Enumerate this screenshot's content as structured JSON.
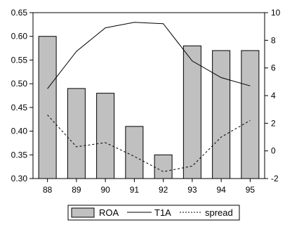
{
  "chart_data": {
    "type": "bar",
    "categories": [
      "88",
      "89",
      "90",
      "91",
      "92",
      "93",
      "94",
      "95"
    ],
    "y_left": {
      "min": 0.3,
      "max": 0.65,
      "ticks": [
        0.3,
        0.35,
        0.4,
        0.45,
        0.5,
        0.55,
        0.6,
        0.65
      ],
      "tick_labels": [
        "0.30",
        "0.35",
        "0.40",
        "0.45",
        "0.50",
        "0.55",
        "0.60",
        "0.65"
      ]
    },
    "y_right": {
      "min": -2,
      "max": 10,
      "ticks": [
        -2,
        0,
        2,
        4,
        6,
        8,
        10
      ],
      "tick_labels": [
        "-2",
        "0",
        "2",
        "4",
        "6",
        "8",
        "10"
      ]
    },
    "series": [
      {
        "name": "ROA",
        "kind": "bar",
        "axis": "left",
        "color": "#c0c0c0",
        "values": [
          0.6,
          0.49,
          0.48,
          0.41,
          0.35,
          0.58,
          0.57,
          0.57
        ]
      },
      {
        "name": "T1A",
        "kind": "line",
        "axis": "right",
        "style": "solid",
        "color": "#000000",
        "values": [
          4.5,
          7.2,
          8.9,
          9.3,
          9.2,
          6.5,
          5.3,
          4.7
        ]
      },
      {
        "name": "spread",
        "kind": "line",
        "axis": "right",
        "style": "dashed",
        "color": "#000000",
        "values": [
          2.6,
          0.3,
          0.6,
          -0.4,
          -1.5,
          -1.1,
          1.0,
          2.2
        ]
      }
    ],
    "legend": {
      "position": "bottom"
    },
    "grid": false
  }
}
